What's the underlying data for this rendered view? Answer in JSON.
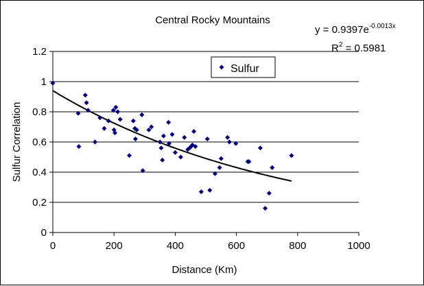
{
  "chart_data": {
    "type": "scatter",
    "title": "Central Rocky Mountains",
    "xlabel": "Distance (Km)",
    "ylabel": "Sulfur Correlation",
    "xlim": [
      0,
      1000
    ],
    "ylim": [
      0,
      1.2
    ],
    "x_ticks": [
      0,
      200,
      400,
      600,
      800,
      1000
    ],
    "y_ticks": [
      0,
      0.2,
      0.4,
      0.6,
      0.8,
      1,
      1.2
    ],
    "x_tick_labels": [
      "0",
      "200",
      "400",
      "600",
      "800",
      "1000"
    ],
    "y_tick_labels": [
      "0",
      "0.2",
      "0.4",
      "0.6",
      "0.8",
      "1",
      "1.2"
    ],
    "grid": "horizontal",
    "legend_position": "top-right",
    "marker_color": "#000080",
    "trendline_color": "#000000",
    "series": [
      {
        "name": "Sulfur",
        "points": [
          [
            0,
            0.99
          ],
          [
            83,
            0.79
          ],
          [
            85,
            0.57
          ],
          [
            106,
            0.91
          ],
          [
            110,
            0.86
          ],
          [
            115,
            0.81
          ],
          [
            138,
            0.6
          ],
          [
            154,
            0.76
          ],
          [
            168,
            0.69
          ],
          [
            182,
            0.74
          ],
          [
            198,
            0.81
          ],
          [
            200,
            0.68
          ],
          [
            203,
            0.66
          ],
          [
            206,
            0.83
          ],
          [
            212,
            0.8
          ],
          [
            220,
            0.75
          ],
          [
            250,
            0.51
          ],
          [
            263,
            0.74
          ],
          [
            268,
            0.69
          ],
          [
            270,
            0.62
          ],
          [
            274,
            0.68
          ],
          [
            291,
            0.78
          ],
          [
            294,
            0.41
          ],
          [
            314,
            0.68
          ],
          [
            322,
            0.7
          ],
          [
            350,
            0.6
          ],
          [
            354,
            0.56
          ],
          [
            358,
            0.48
          ],
          [
            362,
            0.64
          ],
          [
            378,
            0.73
          ],
          [
            380,
            0.59
          ],
          [
            390,
            0.65
          ],
          [
            400,
            0.53
          ],
          [
            418,
            0.5
          ],
          [
            430,
            0.63
          ],
          [
            441,
            0.55
          ],
          [
            447,
            0.56
          ],
          [
            452,
            0.57
          ],
          [
            456,
            0.58
          ],
          [
            461,
            0.67
          ],
          [
            466,
            0.57
          ],
          [
            485,
            0.27
          ],
          [
            505,
            0.62
          ],
          [
            513,
            0.28
          ],
          [
            530,
            0.39
          ],
          [
            545,
            0.43
          ],
          [
            550,
            0.49
          ],
          [
            571,
            0.63
          ],
          [
            577,
            0.6
          ],
          [
            598,
            0.59
          ],
          [
            637,
            0.47
          ],
          [
            641,
            0.47
          ],
          [
            678,
            0.56
          ],
          [
            694,
            0.16
          ],
          [
            707,
            0.26
          ],
          [
            717,
            0.43
          ],
          [
            780,
            0.51
          ]
        ]
      }
    ],
    "trendline": {
      "type": "exponential",
      "a": 0.9397,
      "b": -0.0013,
      "x_range": [
        0,
        780
      ],
      "equation_prefix": "y = 0.9397e",
      "equation_exponent": "-0.0013x",
      "r2_prefix": "R",
      "r2_sup": "2",
      "r2_value": " = 0.5981"
    }
  }
}
